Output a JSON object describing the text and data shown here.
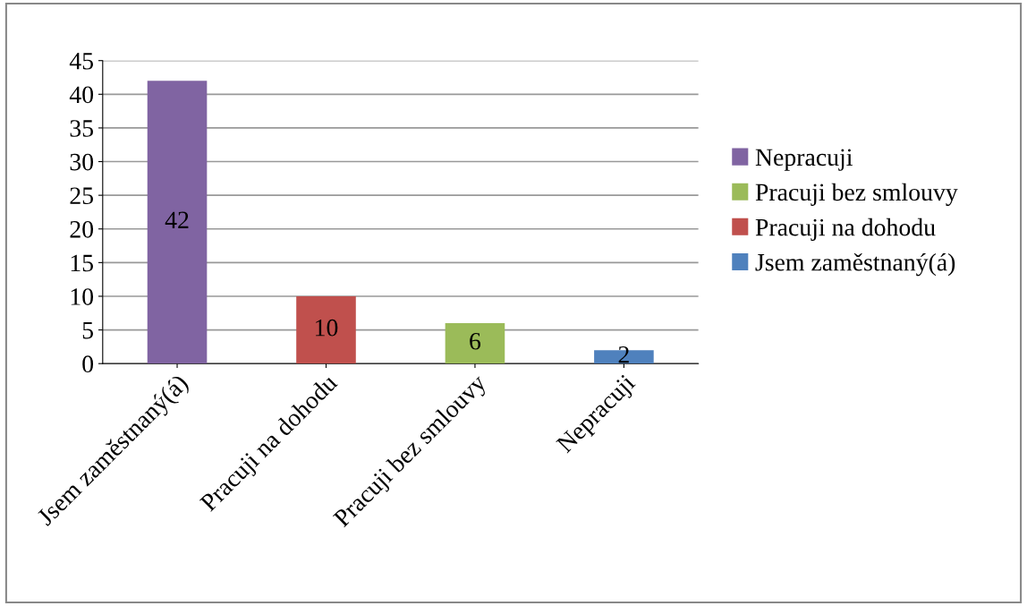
{
  "chart_data": {
    "type": "bar",
    "categories": [
      "Jsem zaměstnaný(á)",
      "Pracuji na dohodu",
      "Pracuji bez smlouvy",
      "Nepracuji"
    ],
    "series": [
      {
        "name": "Nepracuji",
        "color": "#8064a2",
        "values": [
          42,
          null,
          null,
          null
        ]
      },
      {
        "name": "Pracuji bez smlouvy",
        "color": "#9bbb59",
        "values": [
          null,
          null,
          6,
          null
        ]
      },
      {
        "name": "Pracuji na dohodu",
        "color": "#c0504d",
        "values": [
          null,
          10,
          null,
          null
        ]
      },
      {
        "name": "Jsem zaměstnaný(á)",
        "color": "#4f81bd",
        "values": [
          null,
          null,
          null,
          2
        ]
      }
    ],
    "ylim": [
      0,
      45
    ],
    "yticks": [
      0,
      5,
      10,
      15,
      20,
      25,
      30,
      35,
      40,
      45
    ],
    "grid": "y",
    "legend": "right",
    "data_labels": true
  }
}
